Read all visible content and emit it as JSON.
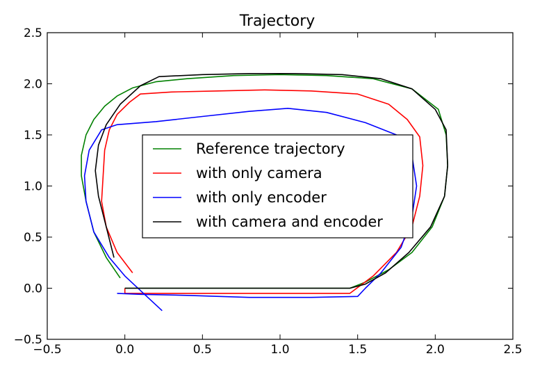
{
  "chart_data": {
    "type": "line",
    "title": "Trajectory",
    "xlabel": "",
    "ylabel": "",
    "xlim": [
      -0.5,
      2.5
    ],
    "ylim": [
      -0.5,
      2.5
    ],
    "x_ticks": [
      -0.5,
      0.0,
      0.5,
      1.0,
      1.5,
      2.0,
      2.5
    ],
    "y_ticks": [
      -0.5,
      0.0,
      0.5,
      1.0,
      1.5,
      2.0,
      2.5
    ],
    "x_tick_labels": [
      "−0.5",
      "0.0",
      "0.5",
      "1.0",
      "1.5",
      "2.0",
      "2.5"
    ],
    "y_tick_labels": [
      "−0.5",
      "0.0",
      "0.5",
      "1.0",
      "1.5",
      "2.0",
      "2.5"
    ],
    "grid": false,
    "legend_position": "center",
    "series": [
      {
        "name": "Reference trajectory",
        "color": "#008000",
        "points": [
          [
            -0.03,
            0.1
          ],
          [
            -0.12,
            0.3
          ],
          [
            -0.2,
            0.55
          ],
          [
            -0.25,
            0.85
          ],
          [
            -0.28,
            1.1
          ],
          [
            -0.28,
            1.3
          ],
          [
            -0.25,
            1.5
          ],
          [
            -0.2,
            1.65
          ],
          [
            -0.13,
            1.78
          ],
          [
            -0.05,
            1.88
          ],
          [
            0.05,
            1.96
          ],
          [
            0.2,
            2.02
          ],
          [
            0.4,
            2.05
          ],
          [
            0.7,
            2.08
          ],
          [
            1.0,
            2.09
          ],
          [
            1.3,
            2.08
          ],
          [
            1.6,
            2.05
          ],
          [
            1.85,
            1.95
          ],
          [
            2.02,
            1.75
          ],
          [
            2.07,
            1.5
          ],
          [
            2.08,
            1.2
          ],
          [
            2.06,
            0.9
          ],
          [
            1.98,
            0.6
          ],
          [
            1.85,
            0.35
          ],
          [
            1.7,
            0.18
          ],
          [
            1.55,
            0.06
          ],
          [
            1.45,
            0.0
          ],
          [
            1.2,
            0.0
          ],
          [
            0.8,
            0.0
          ],
          [
            0.4,
            0.0
          ],
          [
            0.1,
            0.0
          ],
          [
            0.0,
            0.0
          ]
        ]
      },
      {
        "name": "with only camera",
        "color": "#ff0000",
        "points": [
          [
            0.05,
            0.15
          ],
          [
            -0.05,
            0.35
          ],
          [
            -0.12,
            0.6
          ],
          [
            -0.15,
            0.85
          ],
          [
            -0.14,
            1.1
          ],
          [
            -0.13,
            1.35
          ],
          [
            -0.1,
            1.55
          ],
          [
            -0.05,
            1.7
          ],
          [
            0.03,
            1.82
          ],
          [
            0.1,
            1.9
          ],
          [
            0.3,
            1.92
          ],
          [
            0.6,
            1.93
          ],
          [
            0.9,
            1.94
          ],
          [
            1.2,
            1.93
          ],
          [
            1.5,
            1.9
          ],
          [
            1.7,
            1.8
          ],
          [
            1.82,
            1.65
          ],
          [
            1.9,
            1.48
          ],
          [
            1.92,
            1.2
          ],
          [
            1.9,
            0.9
          ],
          [
            1.85,
            0.6
          ],
          [
            1.75,
            0.35
          ],
          [
            1.6,
            0.12
          ],
          [
            1.45,
            -0.05
          ],
          [
            1.2,
            -0.05
          ],
          [
            0.8,
            -0.05
          ],
          [
            0.4,
            -0.05
          ],
          [
            0.1,
            -0.05
          ],
          [
            0.0,
            -0.05
          ],
          [
            0.0,
            0.0
          ]
        ]
      },
      {
        "name": "with only encoder",
        "color": "#0000ff",
        "points": [
          [
            0.24,
            -0.22
          ],
          [
            0.12,
            -0.05
          ],
          [
            0.0,
            0.12
          ],
          [
            -0.1,
            0.3
          ],
          [
            -0.2,
            0.55
          ],
          [
            -0.25,
            0.85
          ],
          [
            -0.26,
            1.1
          ],
          [
            -0.23,
            1.35
          ],
          [
            -0.15,
            1.55
          ],
          [
            -0.05,
            1.6
          ],
          [
            0.2,
            1.63
          ],
          [
            0.5,
            1.68
          ],
          [
            0.8,
            1.73
          ],
          [
            1.05,
            1.76
          ],
          [
            1.3,
            1.72
          ],
          [
            1.55,
            1.62
          ],
          [
            1.75,
            1.5
          ],
          [
            1.85,
            1.3
          ],
          [
            1.88,
            1.0
          ],
          [
            1.85,
            0.7
          ],
          [
            1.78,
            0.4
          ],
          [
            1.65,
            0.15
          ],
          [
            1.55,
            0.0
          ],
          [
            1.5,
            -0.08
          ],
          [
            1.2,
            -0.09
          ],
          [
            0.8,
            -0.09
          ],
          [
            0.4,
            -0.07
          ],
          [
            0.1,
            -0.06
          ],
          [
            -0.05,
            -0.05
          ]
        ]
      },
      {
        "name": "with camera and encoder",
        "color": "#000000",
        "points": [
          [
            -0.07,
            0.3
          ],
          [
            -0.12,
            0.6
          ],
          [
            -0.17,
            0.9
          ],
          [
            -0.19,
            1.15
          ],
          [
            -0.17,
            1.4
          ],
          [
            -0.12,
            1.6
          ],
          [
            -0.03,
            1.8
          ],
          [
            0.1,
            1.98
          ],
          [
            0.22,
            2.07
          ],
          [
            0.5,
            2.09
          ],
          [
            0.8,
            2.1
          ],
          [
            1.1,
            2.1
          ],
          [
            1.4,
            2.09
          ],
          [
            1.65,
            2.05
          ],
          [
            1.85,
            1.95
          ],
          [
            2.0,
            1.75
          ],
          [
            2.07,
            1.55
          ],
          [
            2.08,
            1.2
          ],
          [
            2.06,
            0.9
          ],
          [
            1.97,
            0.6
          ],
          [
            1.83,
            0.35
          ],
          [
            1.68,
            0.15
          ],
          [
            1.55,
            0.04
          ],
          [
            1.45,
            0.0
          ],
          [
            1.2,
            0.0
          ],
          [
            0.8,
            0.0
          ],
          [
            0.4,
            0.0
          ],
          [
            0.1,
            0.0
          ],
          [
            0.0,
            0.0
          ]
        ]
      }
    ]
  }
}
